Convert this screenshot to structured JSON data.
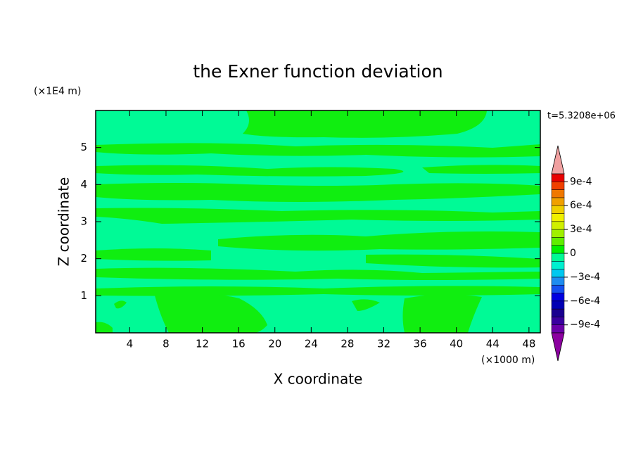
{
  "chart_data": {
    "type": "contour",
    "title": "the Exner function deviation",
    "x_label": "X coordinate",
    "y_label": "Z coordinate",
    "x_unit": "(×1000 m)",
    "y_unit": "(×1E4 m)",
    "annotation": "t=5.3208e+06",
    "xlim": [
      0.25,
      49.25
    ],
    "xticks": [
      4,
      8,
      12,
      16,
      20,
      24,
      28,
      32,
      36,
      40,
      44,
      48
    ],
    "ylim": [
      0,
      6
    ],
    "yticks": [
      1,
      2,
      3,
      4,
      5
    ],
    "colorbar": {
      "lim": [
        -0.001,
        0.001
      ],
      "colors": [
        "#6a00a8",
        "#3a00a0",
        "#1a0090",
        "#0000b4",
        "#0000e0",
        "#1450f0",
        "#1e8cf0",
        "#00c8f0",
        "#00f0d0",
        "#00fa96",
        "#00f000",
        "#60ee00",
        "#a0f000",
        "#d0f000",
        "#f0f000",
        "#f0d000",
        "#f0a000",
        "#f07800",
        "#f04000",
        "#e80000"
      ],
      "over_color": "#f0a0a0",
      "under_color": "#8c00a0",
      "ticks": [
        {
          "value": 0.0009,
          "label": "9e-4"
        },
        {
          "value": 0.0006,
          "label": "6e-4"
        },
        {
          "value": 0.0003,
          "label": "3e-4"
        },
        0,
        {
          "value": -0.0003,
          "label": "−3e-4"
        },
        {
          "value": -0.0006,
          "label": "−6e-4"
        },
        {
          "value": -0.0009,
          "label": "−9e-4"
        }
      ]
    }
  }
}
